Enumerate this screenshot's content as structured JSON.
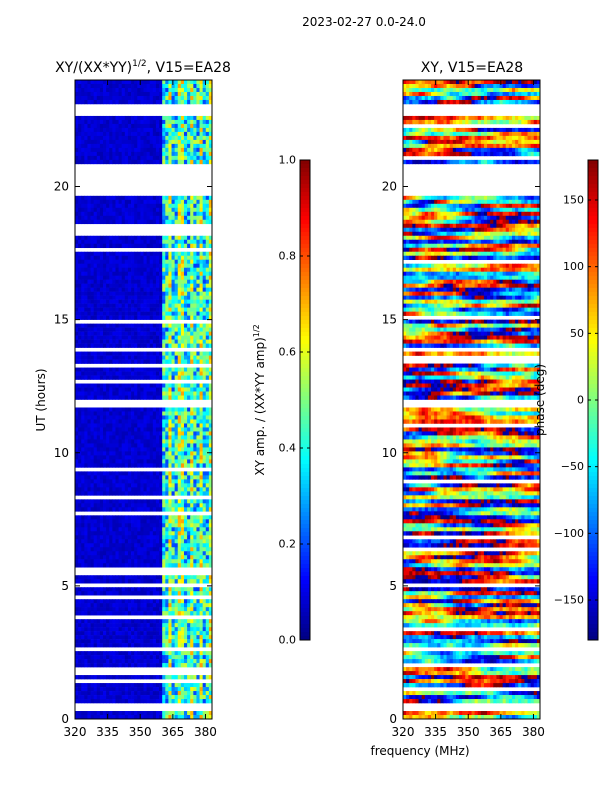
{
  "chart_data": {
    "type": "heatmap",
    "suptitle": "2023-02-27 0.0-24.0",
    "shared_xlabel": "frequency (MHz)",
    "panels": [
      {
        "id": "amp",
        "title_main": "XY/(XX*YY)",
        "title_exp": "1/2",
        "title_suffix": ", V15=EA28",
        "ylabel": "UT (hours)",
        "xlim": [
          320,
          383
        ],
        "ylim": [
          0,
          24
        ],
        "xticks": [
          320,
          335,
          350,
          365,
          380
        ],
        "yticks": [
          0,
          5,
          10,
          15,
          20
        ],
        "colorbar": {
          "label_main": "XY amp. / (XX*YY amp)",
          "label_exp": "1/2",
          "range": [
            0.0,
            1.0
          ],
          "ticks": [
            "0.0",
            "0.2",
            "0.4",
            "0.6",
            "0.8",
            "1.0"
          ],
          "tick_values": [
            0.0,
            0.2,
            0.4,
            0.6,
            0.8,
            1.0
          ]
        },
        "bright_band_mhz": [
          360,
          383
        ],
        "data_gaps_hours": [
          [
            19.6,
            20.9
          ],
          [
            22.6,
            23.1
          ],
          [
            0.35,
            0.65
          ],
          [
            2.55,
            2.75
          ],
          [
            4.9,
            5.1
          ],
          [
            11.75,
            12.05
          ],
          [
            13.75,
            13.95
          ]
        ]
      },
      {
        "id": "phase",
        "title_main": "XY, V15=EA28",
        "ylabel": "",
        "xlim": [
          320,
          383
        ],
        "ylim": [
          0,
          24
        ],
        "xticks": [
          320,
          335,
          350,
          365,
          380
        ],
        "yticks": [
          0,
          5,
          10,
          15,
          20
        ],
        "colorbar": {
          "label_main": "phase (deg)",
          "range": [
            -180,
            180
          ],
          "ticks": [
            "150",
            "100",
            "50",
            "0",
            "−50",
            "−100",
            "−150"
          ],
          "tick_values": [
            150,
            100,
            50,
            0,
            -50,
            -100,
            -150
          ]
        },
        "data_gaps_hours": [
          [
            19.6,
            20.9
          ],
          [
            22.6,
            23.1
          ],
          [
            0.35,
            0.65
          ],
          [
            2.55,
            2.75
          ],
          [
            4.9,
            5.1
          ],
          [
            11.75,
            12.05
          ],
          [
            13.75,
            13.95
          ]
        ]
      }
    ]
  },
  "colors": {
    "background": "#ffffff",
    "axis": "#000000"
  }
}
